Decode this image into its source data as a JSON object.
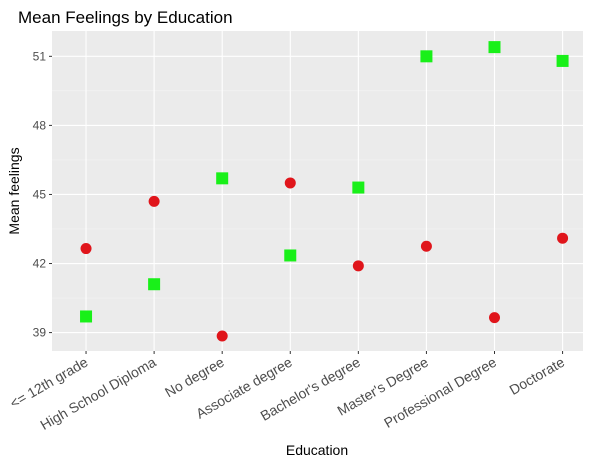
{
  "chart_data": {
    "type": "scatter",
    "title": "Mean Feelings by Education",
    "xlabel": "Education",
    "ylabel": "Mean feelings",
    "categories": [
      "<= 12th grade",
      "High School Diploma",
      "No degree",
      "Associate degree",
      "Bachelor's degree",
      "Master's Degree",
      "Professional Degree",
      "Doctorate"
    ],
    "ylim": [
      38.2,
      52.1
    ],
    "yticks": [
      39,
      42,
      45,
      48,
      51
    ],
    "grid": true,
    "legend": "none",
    "series": [
      {
        "marker": "circle",
        "color": "#e0151b",
        "values": [
          42.65,
          44.7,
          38.85,
          45.5,
          41.9,
          42.75,
          39.65,
          43.1
        ]
      },
      {
        "marker": "square",
        "color": "#19f019",
        "values": [
          39.7,
          41.1,
          45.7,
          42.35,
          45.3,
          51.0,
          51.4,
          50.8
        ]
      }
    ]
  }
}
